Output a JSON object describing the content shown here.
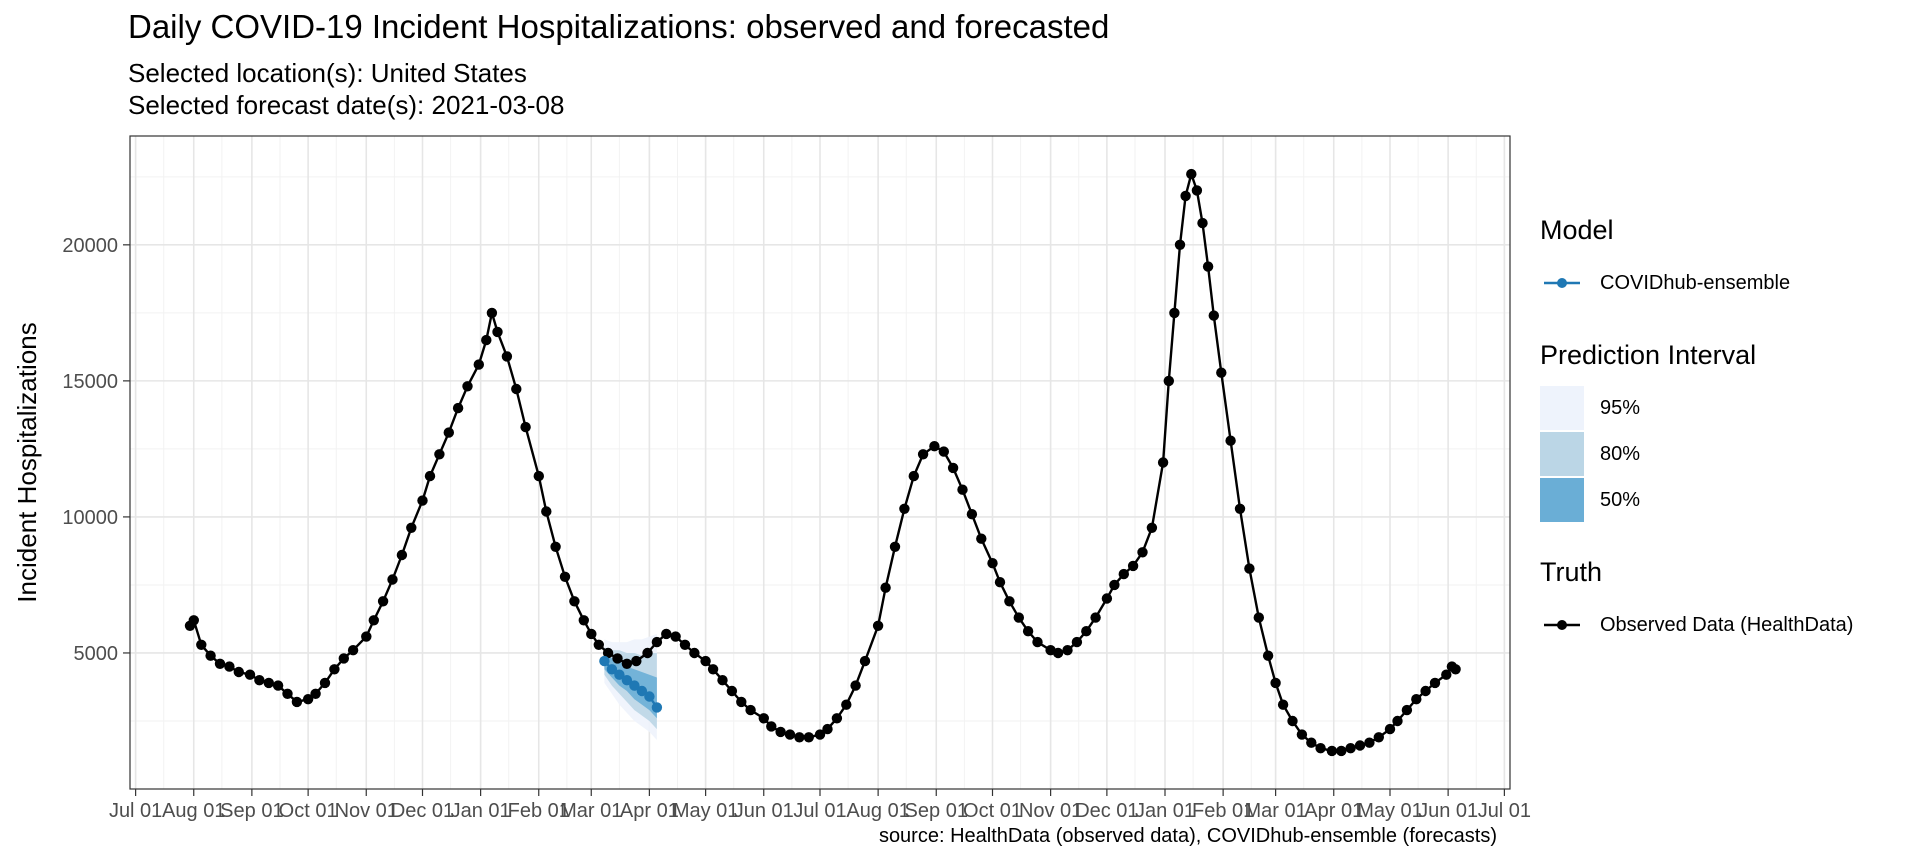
{
  "chart_data": {
    "type": "line",
    "title": "Daily COVID-19 Incident Hospitalizations: observed and forecasted",
    "subtitle_location": "Selected location(s): United States",
    "subtitle_date": "Selected forecast date(s): 2021-03-08",
    "ylabel": "Incident Hospitalizations",
    "xlabel": "",
    "caption": "source: HealthData (observed data), COVIDhub-ensemble (forecasts)",
    "x_range": [
      "2020-06-28",
      "2022-07-04"
    ],
    "ylim": [
      0,
      24000
    ],
    "y_ticks": [
      5000,
      10000,
      15000,
      20000
    ],
    "x_tick_dates": [
      "2020-07-01",
      "2020-08-01",
      "2020-09-01",
      "2020-10-01",
      "2020-11-01",
      "2020-12-01",
      "2021-01-01",
      "2021-02-01",
      "2021-03-01",
      "2021-04-01",
      "2021-05-01",
      "2021-06-01",
      "2021-07-01",
      "2021-08-01",
      "2021-09-01",
      "2021-10-01",
      "2021-11-01",
      "2021-12-01",
      "2022-01-01",
      "2022-02-01",
      "2022-03-01",
      "2022-04-01",
      "2022-05-01",
      "2022-06-01",
      "2022-07-01"
    ],
    "x_tick_labels": [
      "Jul 01",
      "Aug 01",
      "Sep 01",
      "Oct 01",
      "Nov 01",
      "Dec 01",
      "Jan 01",
      "Feb 01",
      "Mar 01",
      "Apr 01",
      "May 01",
      "Jun 01",
      "Jul 01",
      "Aug 01",
      "Sep 01",
      "Oct 01",
      "Nov 01",
      "Dec 01",
      "Jan 01",
      "Feb 01",
      "Mar 01",
      "Apr 01",
      "May 01",
      "Jun 01",
      "Jul 01"
    ],
    "grid": true,
    "legend_position": "right",
    "series": [
      {
        "name": "Observed Data (HealthData)",
        "color": "#000000",
        "points": [
          [
            "2020-07-30",
            6000
          ],
          [
            "2020-08-01",
            6200
          ],
          [
            "2020-08-05",
            5300
          ],
          [
            "2020-08-10",
            4900
          ],
          [
            "2020-08-15",
            4600
          ],
          [
            "2020-08-20",
            4500
          ],
          [
            "2020-08-25",
            4300
          ],
          [
            "2020-08-31",
            4200
          ],
          [
            "2020-09-05",
            4000
          ],
          [
            "2020-09-10",
            3900
          ],
          [
            "2020-09-15",
            3800
          ],
          [
            "2020-09-20",
            3500
          ],
          [
            "2020-09-25",
            3200
          ],
          [
            "2020-10-01",
            3300
          ],
          [
            "2020-10-05",
            3500
          ],
          [
            "2020-10-10",
            3900
          ],
          [
            "2020-10-15",
            4400
          ],
          [
            "2020-10-20",
            4800
          ],
          [
            "2020-10-25",
            5100
          ],
          [
            "2020-11-01",
            5600
          ],
          [
            "2020-11-05",
            6200
          ],
          [
            "2020-11-10",
            6900
          ],
          [
            "2020-11-15",
            7700
          ],
          [
            "2020-11-20",
            8600
          ],
          [
            "2020-11-25",
            9600
          ],
          [
            "2020-12-01",
            10600
          ],
          [
            "2020-12-05",
            11500
          ],
          [
            "2020-12-10",
            12300
          ],
          [
            "2020-12-15",
            13100
          ],
          [
            "2020-12-20",
            14000
          ],
          [
            "2020-12-25",
            14800
          ],
          [
            "2020-12-31",
            15600
          ],
          [
            "2021-01-04",
            16500
          ],
          [
            "2021-01-07",
            17500
          ],
          [
            "2021-01-10",
            16800
          ],
          [
            "2021-01-15",
            15900
          ],
          [
            "2021-01-20",
            14700
          ],
          [
            "2021-01-25",
            13300
          ],
          [
            "2021-02-01",
            11500
          ],
          [
            "2021-02-05",
            10200
          ],
          [
            "2021-02-10",
            8900
          ],
          [
            "2021-02-15",
            7800
          ],
          [
            "2021-02-20",
            6900
          ],
          [
            "2021-02-25",
            6200
          ],
          [
            "2021-03-01",
            5700
          ],
          [
            "2021-03-05",
            5300
          ],
          [
            "2021-03-10",
            5000
          ],
          [
            "2021-03-15",
            4800
          ],
          [
            "2021-03-20",
            4600
          ],
          [
            "2021-03-25",
            4700
          ],
          [
            "2021-03-31",
            5000
          ],
          [
            "2021-04-05",
            5400
          ],
          [
            "2021-04-10",
            5700
          ],
          [
            "2021-04-15",
            5600
          ],
          [
            "2021-04-20",
            5300
          ],
          [
            "2021-04-25",
            5000
          ],
          [
            "2021-05-01",
            4700
          ],
          [
            "2021-05-05",
            4400
          ],
          [
            "2021-05-10",
            4000
          ],
          [
            "2021-05-15",
            3600
          ],
          [
            "2021-05-20",
            3200
          ],
          [
            "2021-05-25",
            2900
          ],
          [
            "2021-06-01",
            2600
          ],
          [
            "2021-06-05",
            2300
          ],
          [
            "2021-06-10",
            2100
          ],
          [
            "2021-06-15",
            2000
          ],
          [
            "2021-06-20",
            1900
          ],
          [
            "2021-06-25",
            1900
          ],
          [
            "2021-07-01",
            2000
          ],
          [
            "2021-07-05",
            2200
          ],
          [
            "2021-07-10",
            2600
          ],
          [
            "2021-07-15",
            3100
          ],
          [
            "2021-07-20",
            3800
          ],
          [
            "2021-07-25",
            4700
          ],
          [
            "2021-08-01",
            6000
          ],
          [
            "2021-08-05",
            7400
          ],
          [
            "2021-08-10",
            8900
          ],
          [
            "2021-08-15",
            10300
          ],
          [
            "2021-08-20",
            11500
          ],
          [
            "2021-08-25",
            12300
          ],
          [
            "2021-08-31",
            12600
          ],
          [
            "2021-09-05",
            12400
          ],
          [
            "2021-09-10",
            11800
          ],
          [
            "2021-09-15",
            11000
          ],
          [
            "2021-09-20",
            10100
          ],
          [
            "2021-09-25",
            9200
          ],
          [
            "2021-10-01",
            8300
          ],
          [
            "2021-10-05",
            7600
          ],
          [
            "2021-10-10",
            6900
          ],
          [
            "2021-10-15",
            6300
          ],
          [
            "2021-10-20",
            5800
          ],
          [
            "2021-10-25",
            5400
          ],
          [
            "2021-11-01",
            5100
          ],
          [
            "2021-11-05",
            5000
          ],
          [
            "2021-11-10",
            5100
          ],
          [
            "2021-11-15",
            5400
          ],
          [
            "2021-11-20",
            5800
          ],
          [
            "2021-11-25",
            6300
          ],
          [
            "2021-12-01",
            7000
          ],
          [
            "2021-12-05",
            7500
          ],
          [
            "2021-12-10",
            7900
          ],
          [
            "2021-12-15",
            8200
          ],
          [
            "2021-12-20",
            8700
          ],
          [
            "2021-12-25",
            9600
          ],
          [
            "2021-12-31",
            12000
          ],
          [
            "2022-01-03",
            15000
          ],
          [
            "2022-01-06",
            17500
          ],
          [
            "2022-01-09",
            20000
          ],
          [
            "2022-01-12",
            21800
          ],
          [
            "2022-01-15",
            22600
          ],
          [
            "2022-01-18",
            22000
          ],
          [
            "2022-01-21",
            20800
          ],
          [
            "2022-01-24",
            19200
          ],
          [
            "2022-01-27",
            17400
          ],
          [
            "2022-01-31",
            15300
          ],
          [
            "2022-02-05",
            12800
          ],
          [
            "2022-02-10",
            10300
          ],
          [
            "2022-02-15",
            8100
          ],
          [
            "2022-02-20",
            6300
          ],
          [
            "2022-02-25",
            4900
          ],
          [
            "2022-03-01",
            3900
          ],
          [
            "2022-03-05",
            3100
          ],
          [
            "2022-03-10",
            2500
          ],
          [
            "2022-03-15",
            2000
          ],
          [
            "2022-03-20",
            1700
          ],
          [
            "2022-03-25",
            1500
          ],
          [
            "2022-03-31",
            1400
          ],
          [
            "2022-04-05",
            1400
          ],
          [
            "2022-04-10",
            1500
          ],
          [
            "2022-04-15",
            1600
          ],
          [
            "2022-04-20",
            1700
          ],
          [
            "2022-04-25",
            1900
          ],
          [
            "2022-05-01",
            2200
          ],
          [
            "2022-05-05",
            2500
          ],
          [
            "2022-05-10",
            2900
          ],
          [
            "2022-05-15",
            3300
          ],
          [
            "2022-05-20",
            3600
          ],
          [
            "2022-05-25",
            3900
          ],
          [
            "2022-05-31",
            4200
          ],
          [
            "2022-06-03",
            4500
          ],
          [
            "2022-06-05",
            4400
          ]
        ]
      },
      {
        "name": "COVIDhub-ensemble",
        "color": "#1F78B4",
        "points": [
          [
            "2021-03-08",
            4700
          ],
          [
            "2021-03-12",
            4400
          ],
          [
            "2021-03-16",
            4200
          ],
          [
            "2021-03-20",
            4000
          ],
          [
            "2021-03-24",
            3800
          ],
          [
            "2021-03-28",
            3600
          ],
          [
            "2021-04-01",
            3400
          ],
          [
            "2021-04-05",
            3000
          ]
        ],
        "intervals": {
          "dates": [
            "2021-03-08",
            "2021-03-12",
            "2021-03-16",
            "2021-03-20",
            "2021-03-24",
            "2021-03-28",
            "2021-04-01",
            "2021-04-05"
          ],
          "95": [
            [
              3900,
              5500
            ],
            [
              3500,
              5400
            ],
            [
              3100,
              5400
            ],
            [
              2800,
              5400
            ],
            [
              2500,
              5500
            ],
            [
              2300,
              5500
            ],
            [
              2100,
              5600
            ],
            [
              1800,
              5700
            ]
          ],
          "80": [
            [
              4200,
              5200
            ],
            [
              3800,
              5100
            ],
            [
              3500,
              5100
            ],
            [
              3200,
              5000
            ],
            [
              2900,
              5000
            ],
            [
              2700,
              4900
            ],
            [
              2500,
              5000
            ],
            [
              2200,
              5000
            ]
          ],
          "50": [
            [
              4400,
              5000
            ],
            [
              4100,
              4800
            ],
            [
              3800,
              4700
            ],
            [
              3600,
              4500
            ],
            [
              3300,
              4400
            ],
            [
              3100,
              4300
            ],
            [
              2900,
              4200
            ],
            [
              2600,
              4100
            ]
          ]
        }
      }
    ]
  },
  "legend": {
    "model_title": "Model",
    "model_item": "COVIDhub-ensemble",
    "model_color": "#1F78B4",
    "pi_title": "Prediction Interval",
    "pi_items": [
      {
        "label": "95%",
        "color": "#EEF3FC"
      },
      {
        "label": "80%",
        "color": "#BBD6E6"
      },
      {
        "label": "50%",
        "color": "#6AAED6"
      }
    ],
    "truth_title": "Truth",
    "truth_item": "Observed Data (HealthData)",
    "truth_color": "#000000"
  }
}
